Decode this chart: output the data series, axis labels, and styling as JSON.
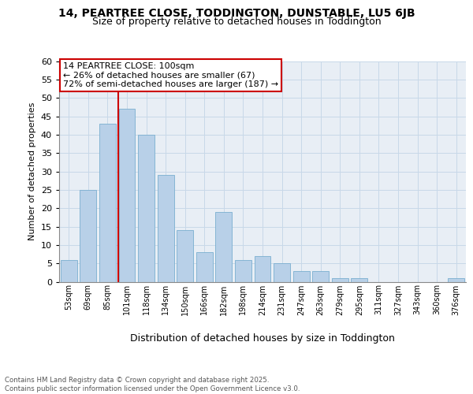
{
  "title1": "14, PEARTREE CLOSE, TODDINGTON, DUNSTABLE, LU5 6JB",
  "title2": "Size of property relative to detached houses in Toddington",
  "xlabel": "Distribution of detached houses by size in Toddington",
  "ylabel": "Number of detached properties",
  "categories": [
    "53sqm",
    "69sqm",
    "85sqm",
    "101sqm",
    "118sqm",
    "134sqm",
    "150sqm",
    "166sqm",
    "182sqm",
    "198sqm",
    "214sqm",
    "231sqm",
    "247sqm",
    "263sqm",
    "279sqm",
    "295sqm",
    "311sqm",
    "327sqm",
    "343sqm",
    "360sqm",
    "376sqm"
  ],
  "values": [
    6,
    25,
    43,
    47,
    40,
    29,
    14,
    8,
    19,
    6,
    7,
    5,
    3,
    3,
    1,
    1,
    0,
    0,
    0,
    0,
    1
  ],
  "bar_color": "#b8d0e8",
  "bar_edge_color": "#7aafd0",
  "vline_index": 3,
  "vline_color": "#cc0000",
  "annotation_text": "14 PEARTREE CLOSE: 100sqm\n← 26% of detached houses are smaller (67)\n72% of semi-detached houses are larger (187) →",
  "annotation_box_color": "#cc0000",
  "ylim": [
    0,
    60
  ],
  "grid_color": "#c8d8e8",
  "background_color": "#e8eef5",
  "footer": "Contains HM Land Registry data © Crown copyright and database right 2025.\nContains public sector information licensed under the Open Government Licence v3.0.",
  "title1_fontsize": 10,
  "title2_fontsize": 9,
  "xlabel_fontsize": 9,
  "ylabel_fontsize": 8,
  "tick_fontsize": 7,
  "annotation_fontsize": 8
}
